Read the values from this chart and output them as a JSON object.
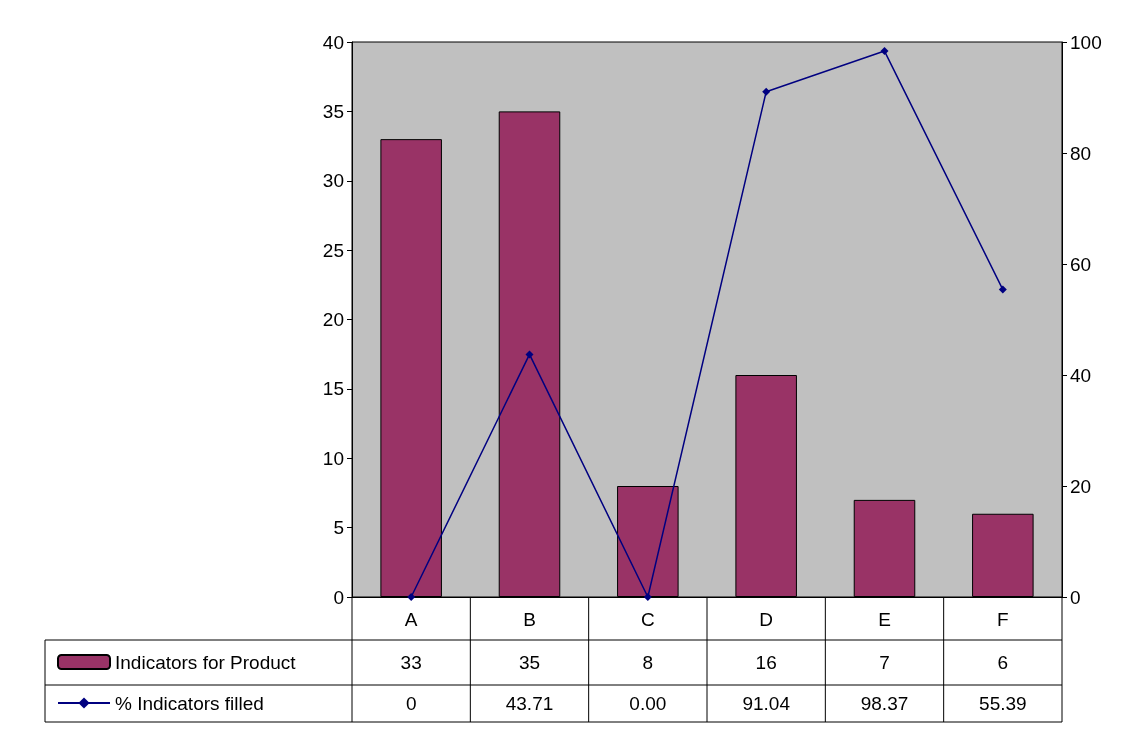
{
  "chart_data": {
    "type": "bar",
    "categories": [
      "A",
      "B",
      "C",
      "D",
      "E",
      "F"
    ],
    "series": [
      {
        "name": "Indicators for Product",
        "color": "#993366",
        "values": [
          33,
          35,
          8,
          16,
          7,
          6
        ],
        "value_labels": [
          "33",
          "35",
          "8",
          "16",
          "7",
          "6"
        ]
      },
      {
        "name": "% Indicators filled",
        "type": "line",
        "axis": "y2",
        "color": "#000080",
        "marker": "diamond",
        "line_style": "solid",
        "values": [
          0,
          43.71,
          0,
          91.04,
          98.37,
          55.39
        ],
        "value_labels": [
          "0",
          "43.71",
          "0.00",
          "91.04",
          "98.37",
          "55.39"
        ]
      }
    ],
    "ylim": [
      0,
      40
    ],
    "yticks": [
      0,
      5,
      10,
      15,
      20,
      25,
      30,
      35,
      40
    ],
    "y2lim": [
      0,
      100
    ],
    "y2ticks": [
      0,
      20,
      40,
      60,
      80,
      100
    ],
    "grid": false,
    "legend": "bottom"
  }
}
